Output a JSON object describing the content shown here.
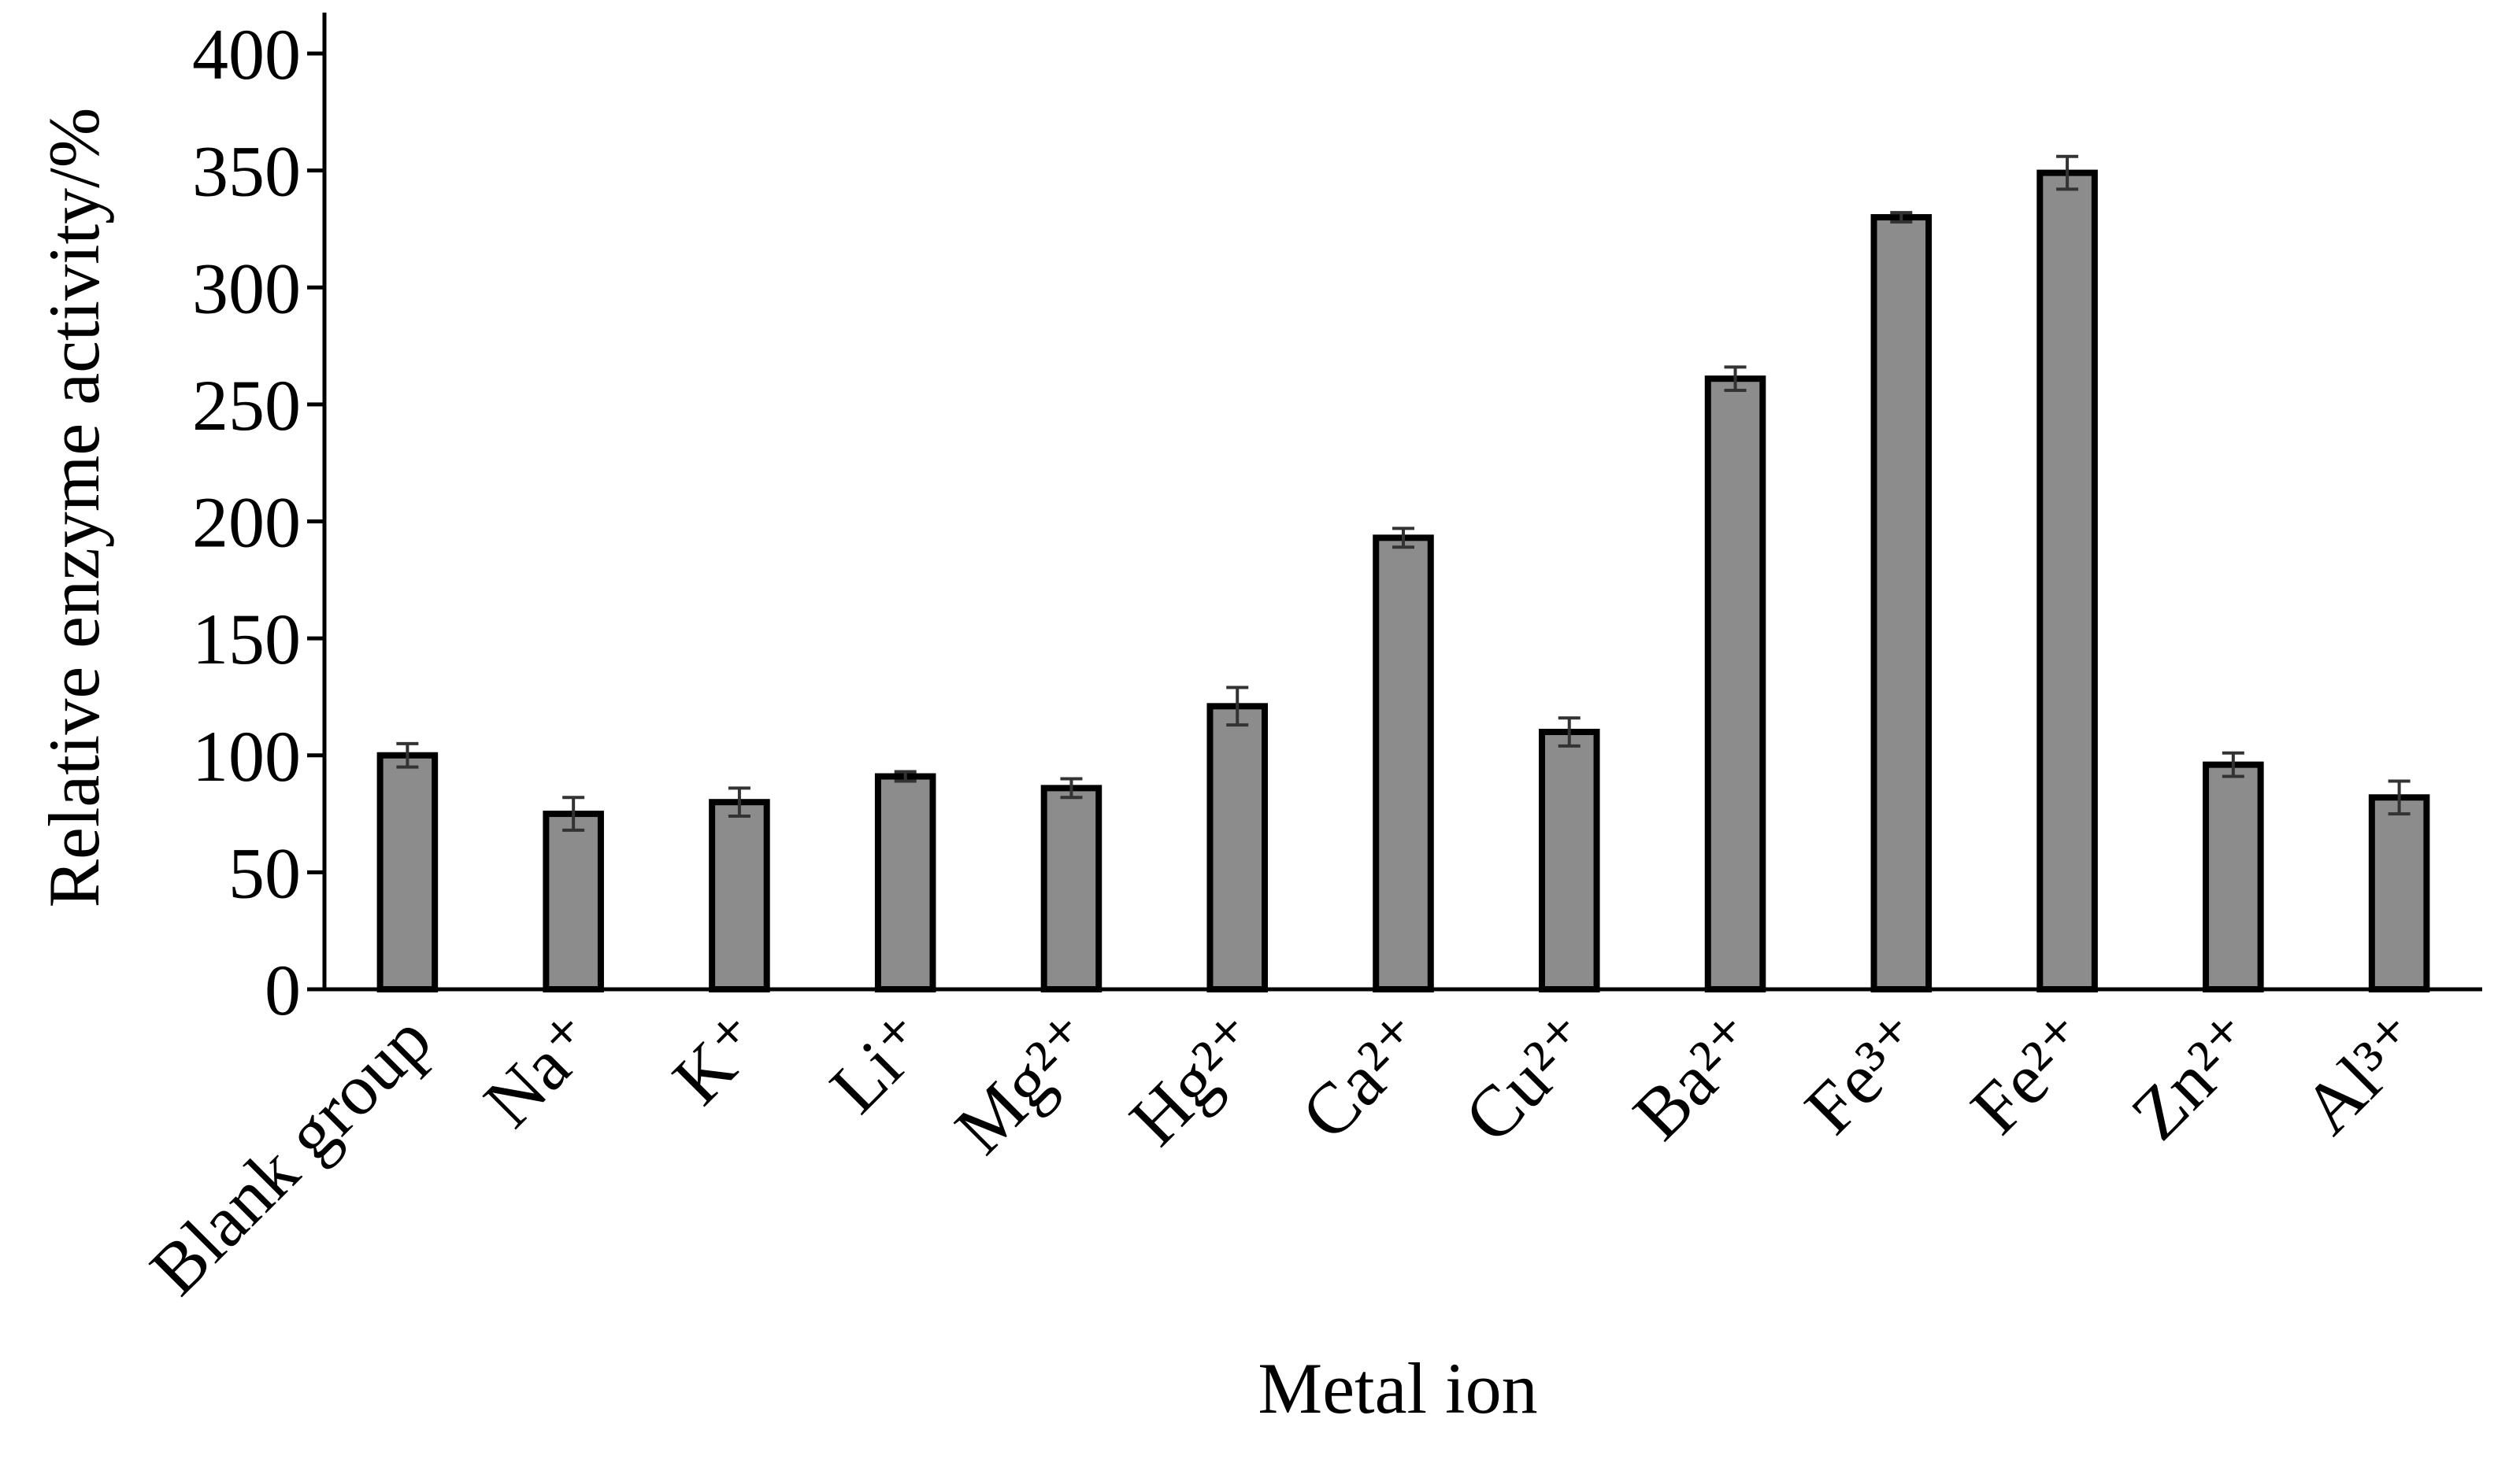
{
  "chart_data": {
    "type": "bar",
    "x_label": "Metal ion",
    "y_label": "Relative enzyme activity/%",
    "categories": [
      "Blank group",
      "Na⁺",
      "K⁺",
      "Li⁺",
      "Mg²⁺",
      "Hg²⁺",
      "Ca²⁺",
      "Cu²⁺",
      "Ba²⁺",
      "Fe³⁺",
      "Fe²⁺",
      "Zn²⁺",
      "Al³⁺"
    ],
    "values": [
      100,
      75,
      80,
      91,
      86,
      121,
      193,
      110,
      261,
      330,
      349,
      96,
      82
    ],
    "errors": [
      5,
      7,
      6,
      2,
      4,
      8,
      4,
      6,
      5,
      2,
      7,
      5,
      7
    ],
    "color": "#8c8c8c",
    "ylim": [
      0,
      400
    ],
    "yticks": [
      0,
      50,
      100,
      150,
      200,
      250,
      300,
      350,
      400
    ]
  }
}
